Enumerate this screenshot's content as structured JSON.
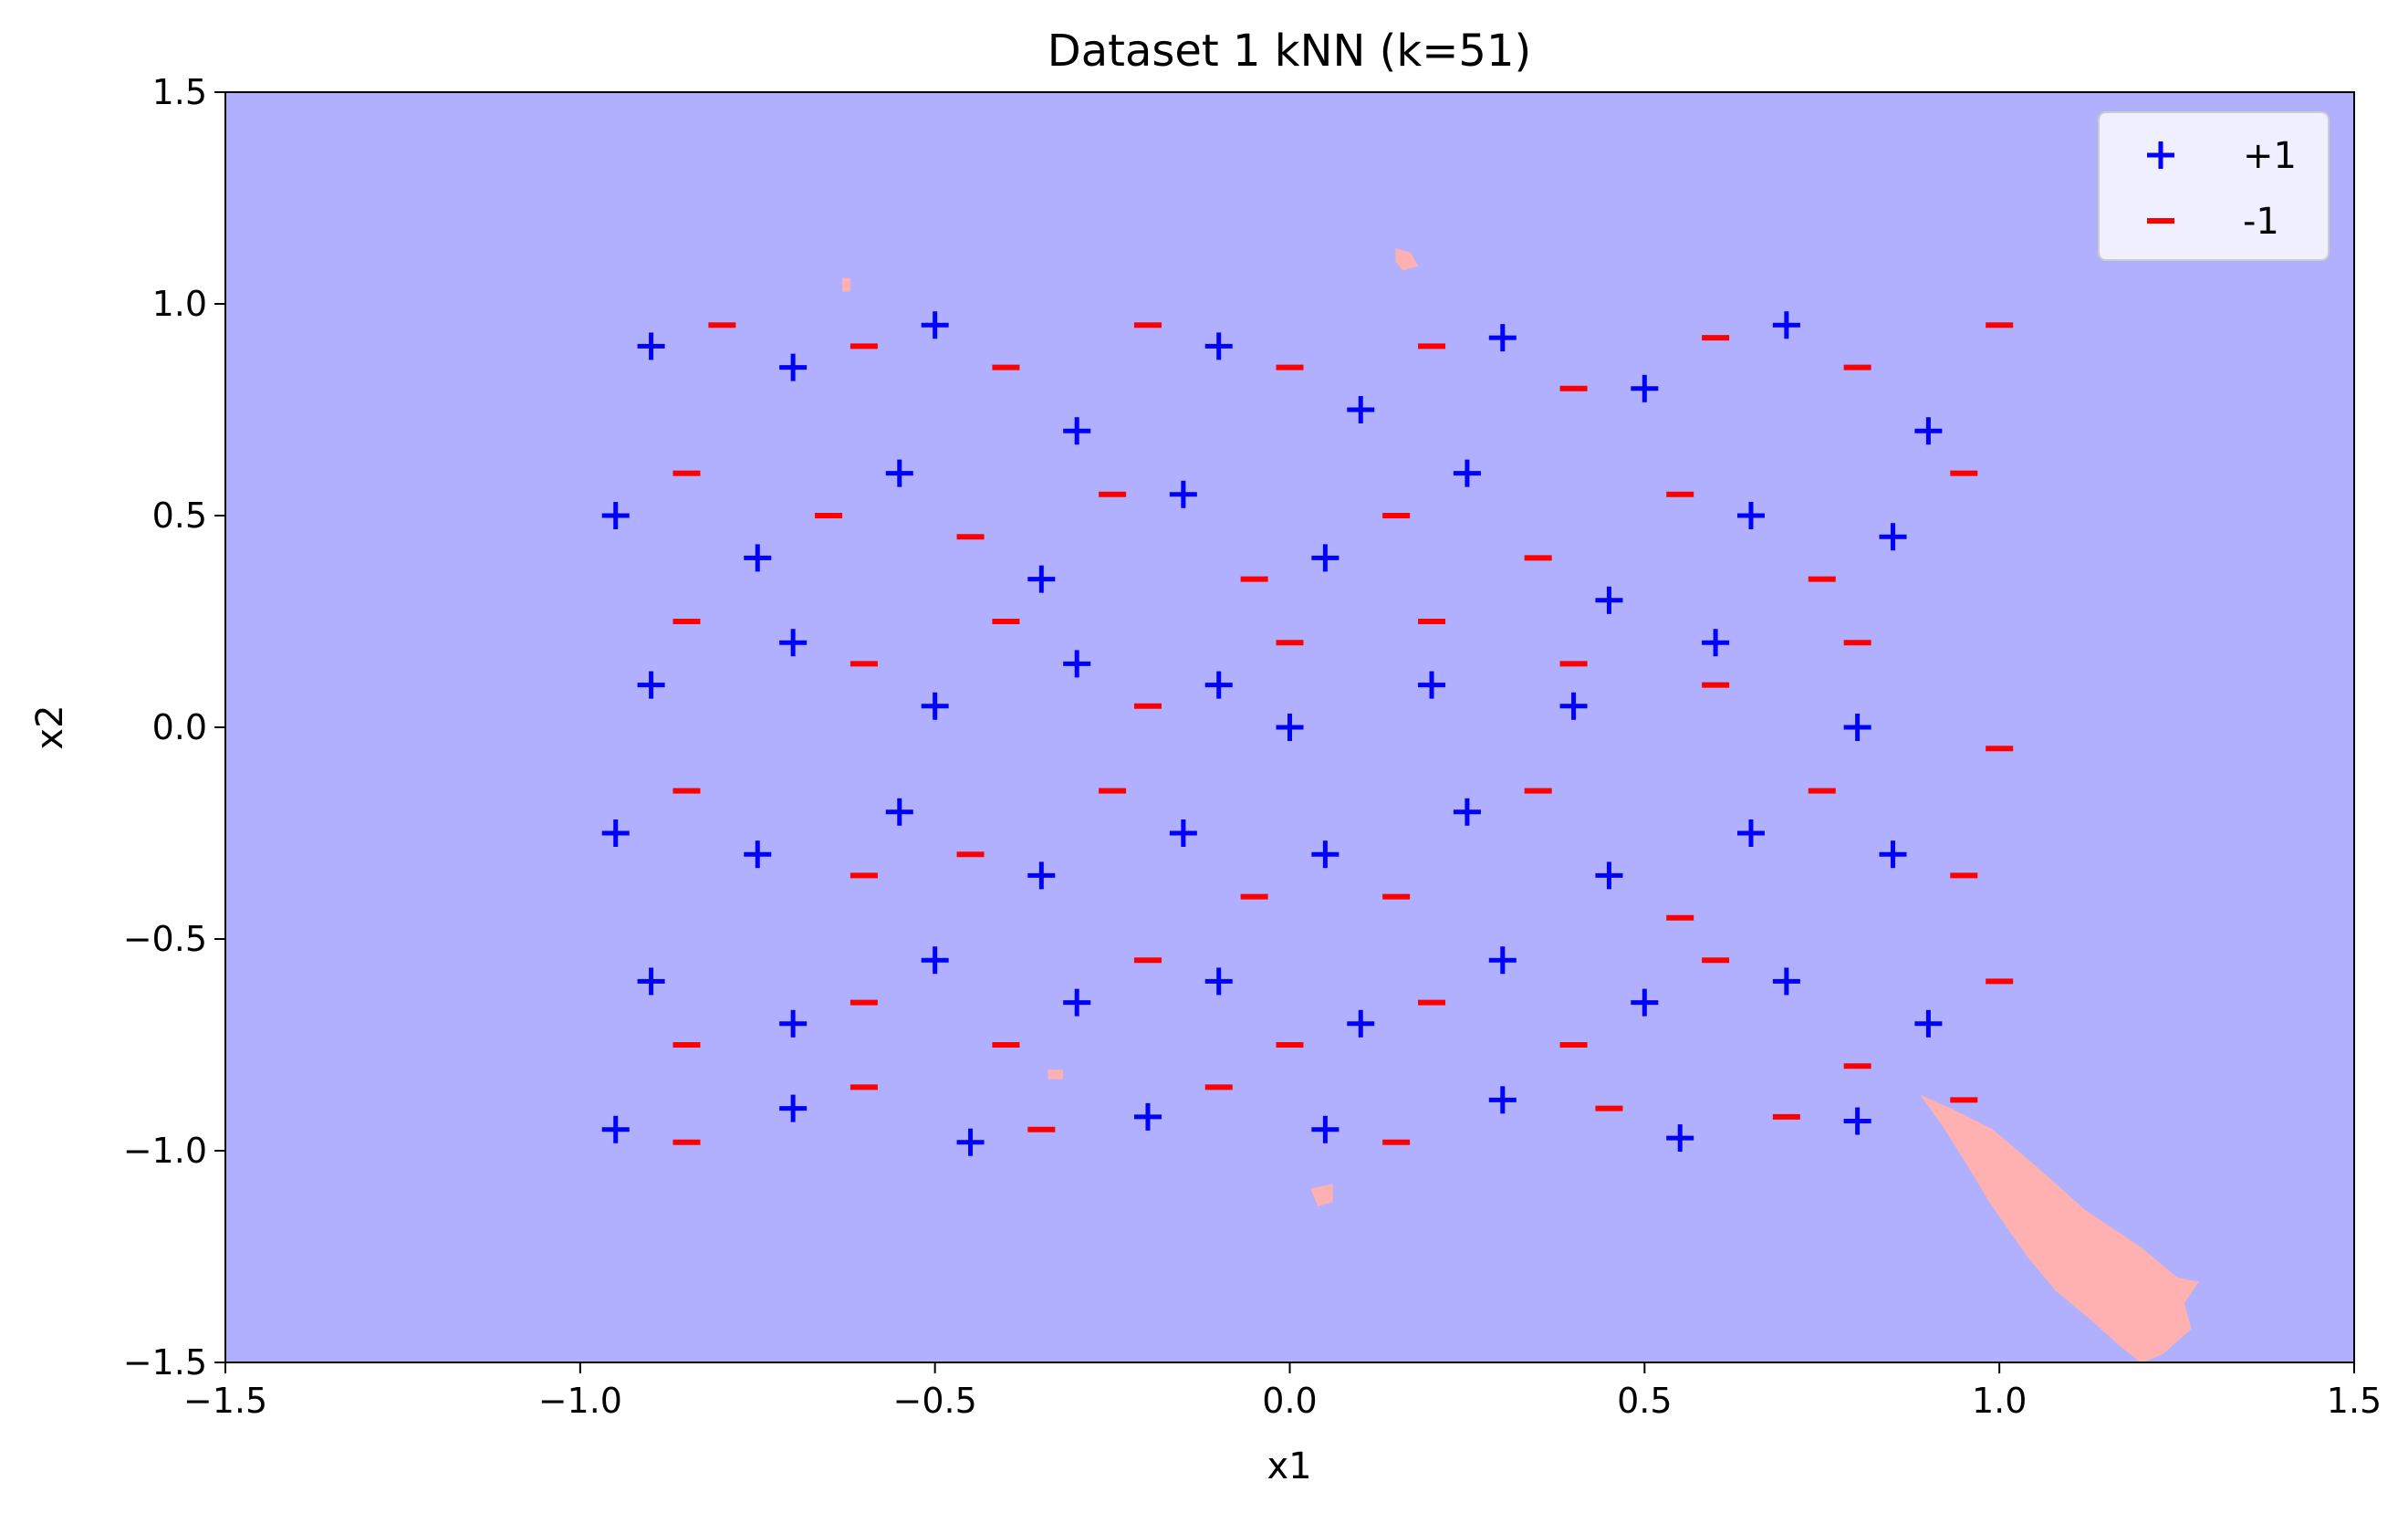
{
  "chart_data": {
    "type": "scatter",
    "title": "Dataset 1 kNN (k=51)",
    "xlabel": "x1",
    "ylabel": "x2",
    "xlim": [
      -1.5,
      1.5
    ],
    "ylim": [
      -1.5,
      1.5
    ],
    "xticks": [
      -1.5,
      -1.0,
      -0.5,
      0.0,
      0.5,
      1.0,
      1.5
    ],
    "yticks": [
      -1.5,
      -1.0,
      -0.5,
      0.0,
      0.5,
      1.0,
      1.5
    ],
    "xtick_labels": [
      "−1.5",
      "−1.0",
      "−0.5",
      "0.0",
      "0.5",
      "1.0",
      "1.5"
    ],
    "ytick_labels": [
      "−1.5",
      "−1.0",
      "−0.5",
      "0.0",
      "0.5",
      "1.0",
      "1.5"
    ],
    "grid": false,
    "legend_position": "top-right",
    "background_region": {
      "label": "+1",
      "color": "#b0b0ff"
    },
    "decision_regions": [
      {
        "label": "-1",
        "color": "#ffb0b0",
        "polygon": [
          [
            0.89,
            -0.87
          ],
          [
            0.93,
            -0.9
          ],
          [
            0.99,
            -0.95
          ],
          [
            1.06,
            -1.05
          ],
          [
            1.12,
            -1.14
          ],
          [
            1.2,
            -1.23
          ],
          [
            1.25,
            -1.3
          ],
          [
            1.28,
            -1.31
          ],
          [
            1.26,
            -1.36
          ],
          [
            1.27,
            -1.42
          ],
          [
            1.23,
            -1.48
          ],
          [
            1.2,
            -1.5
          ],
          [
            1.17,
            -1.46
          ],
          [
            1.13,
            -1.4
          ],
          [
            1.08,
            -1.33
          ],
          [
            1.04,
            -1.25
          ],
          [
            0.99,
            -1.13
          ],
          [
            0.95,
            -1.02
          ],
          [
            0.92,
            -0.94
          ]
        ]
      },
      {
        "label": "-1",
        "color": "#ffb0b0",
        "polygon": [
          [
            0.03,
            -1.09
          ],
          [
            0.06,
            -1.08
          ],
          [
            0.06,
            -1.12
          ],
          [
            0.04,
            -1.13
          ]
        ]
      },
      {
        "label": "-1",
        "color": "#ffb0b0",
        "polygon": [
          [
            -0.34,
            -0.81
          ],
          [
            -0.32,
            -0.81
          ],
          [
            -0.32,
            -0.83
          ],
          [
            -0.34,
            -0.83
          ]
        ]
      },
      {
        "label": "-1",
        "color": "#ffb0b0",
        "polygon": [
          [
            -0.63,
            1.06
          ],
          [
            -0.62,
            1.06
          ],
          [
            -0.62,
            1.03
          ],
          [
            -0.63,
            1.03
          ]
        ]
      },
      {
        "label": "-1",
        "color": "#ffb0b0",
        "polygon": [
          [
            0.15,
            1.13
          ],
          [
            0.17,
            1.12
          ],
          [
            0.18,
            1.09
          ],
          [
            0.16,
            1.08
          ],
          [
            0.15,
            1.1
          ]
        ]
      }
    ],
    "series": [
      {
        "name": "+1",
        "marker": "+",
        "color": "#0000ff",
        "points": [
          [
            -0.9,
            0.9
          ],
          [
            -0.7,
            0.85
          ],
          [
            -0.5,
            0.95
          ],
          [
            -0.3,
            0.7
          ],
          [
            -0.1,
            0.9
          ],
          [
            0.1,
            0.75
          ],
          [
            0.3,
            0.92
          ],
          [
            0.5,
            0.8
          ],
          [
            0.7,
            0.95
          ],
          [
            0.9,
            0.7
          ],
          [
            -0.95,
            0.5
          ],
          [
            -0.75,
            0.4
          ],
          [
            -0.55,
            0.6
          ],
          [
            -0.35,
            0.35
          ],
          [
            -0.15,
            0.55
          ],
          [
            0.05,
            0.4
          ],
          [
            0.25,
            0.6
          ],
          [
            0.45,
            0.3
          ],
          [
            0.65,
            0.5
          ],
          [
            0.85,
            0.45
          ],
          [
            -0.9,
            0.1
          ],
          [
            -0.7,
            0.2
          ],
          [
            -0.5,
            0.05
          ],
          [
            -0.3,
            0.15
          ],
          [
            -0.1,
            0.1
          ],
          [
            0.0,
            0.0
          ],
          [
            0.2,
            0.1
          ],
          [
            0.4,
            0.05
          ],
          [
            0.6,
            0.2
          ],
          [
            0.8,
            0.0
          ],
          [
            -0.95,
            -0.25
          ],
          [
            -0.75,
            -0.3
          ],
          [
            -0.55,
            -0.2
          ],
          [
            -0.35,
            -0.35
          ],
          [
            -0.15,
            -0.25
          ],
          [
            0.05,
            -0.3
          ],
          [
            0.25,
            -0.2
          ],
          [
            0.45,
            -0.35
          ],
          [
            0.65,
            -0.25
          ],
          [
            0.85,
            -0.3
          ],
          [
            -0.9,
            -0.6
          ],
          [
            -0.7,
            -0.7
          ],
          [
            -0.5,
            -0.55
          ],
          [
            -0.3,
            -0.65
          ],
          [
            -0.1,
            -0.6
          ],
          [
            0.1,
            -0.7
          ],
          [
            0.3,
            -0.55
          ],
          [
            0.5,
            -0.65
          ],
          [
            0.7,
            -0.6
          ],
          [
            0.9,
            -0.7
          ],
          [
            -0.95,
            -0.95
          ],
          [
            -0.7,
            -0.9
          ],
          [
            -0.45,
            -0.98
          ],
          [
            -0.2,
            -0.92
          ],
          [
            0.05,
            -0.95
          ],
          [
            0.3,
            -0.88
          ],
          [
            0.55,
            -0.97
          ],
          [
            0.8,
            -0.93
          ]
        ]
      },
      {
        "name": "-1",
        "marker": "_",
        "color": "#ff0000",
        "points": [
          [
            -0.8,
            0.95
          ],
          [
            -0.6,
            0.9
          ],
          [
            -0.4,
            0.85
          ],
          [
            -0.2,
            0.95
          ],
          [
            0.0,
            0.85
          ],
          [
            0.2,
            0.9
          ],
          [
            0.4,
            0.8
          ],
          [
            0.6,
            0.92
          ],
          [
            0.8,
            0.85
          ],
          [
            1.0,
            0.95
          ],
          [
            -0.85,
            0.6
          ],
          [
            -0.65,
            0.5
          ],
          [
            -0.45,
            0.45
          ],
          [
            -0.25,
            0.55
          ],
          [
            -0.05,
            0.35
          ],
          [
            0.15,
            0.5
          ],
          [
            0.35,
            0.4
          ],
          [
            0.55,
            0.55
          ],
          [
            0.75,
            0.35
          ],
          [
            0.95,
            0.6
          ],
          [
            -0.85,
            0.25
          ],
          [
            -0.6,
            0.15
          ],
          [
            -0.4,
            0.25
          ],
          [
            -0.2,
            0.05
          ],
          [
            0.0,
            0.2
          ],
          [
            0.2,
            0.25
          ],
          [
            0.4,
            0.15
          ],
          [
            0.6,
            0.1
          ],
          [
            0.8,
            0.2
          ],
          [
            1.0,
            -0.05
          ],
          [
            -0.85,
            -0.15
          ],
          [
            -0.6,
            -0.35
          ],
          [
            -0.45,
            -0.3
          ],
          [
            -0.25,
            -0.15
          ],
          [
            -0.05,
            -0.4
          ],
          [
            0.15,
            -0.4
          ],
          [
            0.35,
            -0.15
          ],
          [
            0.55,
            -0.45
          ],
          [
            0.75,
            -0.15
          ],
          [
            0.95,
            -0.35
          ],
          [
            -0.85,
            -0.75
          ],
          [
            -0.6,
            -0.65
          ],
          [
            -0.4,
            -0.75
          ],
          [
            -0.2,
            -0.55
          ],
          [
            0.0,
            -0.75
          ],
          [
            0.2,
            -0.65
          ],
          [
            0.4,
            -0.75
          ],
          [
            0.6,
            -0.55
          ],
          [
            0.8,
            -0.8
          ],
          [
            1.0,
            -0.6
          ],
          [
            -0.85,
            -0.98
          ],
          [
            -0.6,
            -0.85
          ],
          [
            -0.35,
            -0.95
          ],
          [
            -0.1,
            -0.85
          ],
          [
            0.15,
            -0.98
          ],
          [
            0.45,
            -0.9
          ],
          [
            0.7,
            -0.92
          ],
          [
            0.95,
            -0.88
          ]
        ]
      }
    ]
  }
}
